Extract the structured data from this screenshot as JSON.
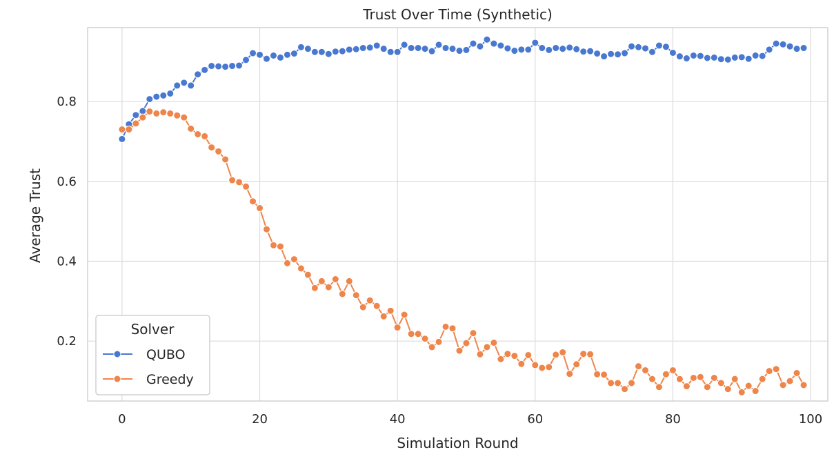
{
  "chart_data": {
    "type": "line",
    "title": "Trust Over Time (Synthetic)",
    "xlabel": "Simulation Round",
    "ylabel": "Average Trust",
    "xlim": [
      -5.0,
      102.5
    ],
    "ylim": [
      0.05,
      0.985
    ],
    "x_ticks": [
      0,
      20,
      40,
      60,
      80,
      100
    ],
    "x_tick_labels": [
      "0",
      "20",
      "40",
      "60",
      "80",
      "100"
    ],
    "y_ticks": [
      0.2,
      0.4,
      0.6,
      0.8
    ],
    "y_tick_labels": [
      "0.2",
      "0.4",
      "0.6",
      "0.8"
    ],
    "grid": true,
    "legend": {
      "title": "Solver",
      "position": "lower-left"
    },
    "x": [
      0,
      1,
      2,
      3,
      4,
      5,
      6,
      7,
      8,
      9,
      10,
      11,
      12,
      13,
      14,
      15,
      16,
      17,
      18,
      19,
      20,
      21,
      22,
      23,
      24,
      25,
      26,
      27,
      28,
      29,
      30,
      31,
      32,
      33,
      34,
      35,
      36,
      37,
      38,
      39,
      40,
      41,
      42,
      43,
      44,
      45,
      46,
      47,
      48,
      49,
      50,
      51,
      52,
      53,
      54,
      55,
      56,
      57,
      58,
      59,
      60,
      61,
      62,
      63,
      64,
      65,
      66,
      67,
      68,
      69,
      70,
      71,
      72,
      73,
      74,
      75,
      76,
      77,
      78,
      79,
      80,
      81,
      82,
      83,
      84,
      85,
      86,
      87,
      88,
      89,
      90,
      91,
      92,
      93,
      94,
      95,
      96,
      97,
      98,
      99
    ],
    "series": [
      {
        "name": "QUBO",
        "color": "#4878d0",
        "values": [
          0.706,
          0.743,
          0.766,
          0.776,
          0.806,
          0.812,
          0.815,
          0.82,
          0.84,
          0.847,
          0.84,
          0.868,
          0.879,
          0.889,
          0.888,
          0.887,
          0.889,
          0.89,
          0.904,
          0.921,
          0.917,
          0.907,
          0.915,
          0.91,
          0.917,
          0.92,
          0.936,
          0.932,
          0.924,
          0.924,
          0.919,
          0.925,
          0.926,
          0.93,
          0.931,
          0.934,
          0.935,
          0.94,
          0.932,
          0.924,
          0.924,
          0.942,
          0.934,
          0.934,
          0.932,
          0.926,
          0.942,
          0.934,
          0.932,
          0.927,
          0.929,
          0.945,
          0.938,
          0.955,
          0.945,
          0.94,
          0.933,
          0.927,
          0.93,
          0.93,
          0.947,
          0.934,
          0.929,
          0.934,
          0.932,
          0.935,
          0.931,
          0.925,
          0.926,
          0.92,
          0.913,
          0.919,
          0.918,
          0.921,
          0.938,
          0.936,
          0.933,
          0.924,
          0.94,
          0.937,
          0.922,
          0.913,
          0.908,
          0.915,
          0.914,
          0.909,
          0.91,
          0.906,
          0.905,
          0.91,
          0.911,
          0.907,
          0.915,
          0.914,
          0.93,
          0.945,
          0.943,
          0.938,
          0.932,
          0.934
        ]
      },
      {
        "name": "Greedy",
        "color": "#ee854a",
        "values": [
          0.73,
          0.73,
          0.745,
          0.76,
          0.775,
          0.77,
          0.773,
          0.77,
          0.765,
          0.76,
          0.732,
          0.718,
          0.713,
          0.685,
          0.675,
          0.655,
          0.603,
          0.598,
          0.587,
          0.55,
          0.533,
          0.48,
          0.44,
          0.437,
          0.395,
          0.405,
          0.382,
          0.366,
          0.333,
          0.35,
          0.335,
          0.355,
          0.318,
          0.35,
          0.315,
          0.285,
          0.302,
          0.288,
          0.262,
          0.276,
          0.234,
          0.266,
          0.218,
          0.218,
          0.206,
          0.185,
          0.198,
          0.236,
          0.232,
          0.176,
          0.195,
          0.22,
          0.167,
          0.185,
          0.196,
          0.155,
          0.168,
          0.163,
          0.143,
          0.165,
          0.14,
          0.133,
          0.135,
          0.166,
          0.172,
          0.118,
          0.142,
          0.168,
          0.167,
          0.117,
          0.116,
          0.095,
          0.095,
          0.08,
          0.095,
          0.137,
          0.127,
          0.105,
          0.085,
          0.117,
          0.127,
          0.105,
          0.087,
          0.108,
          0.11,
          0.085,
          0.108,
          0.095,
          0.08,
          0.105,
          0.072,
          0.088,
          0.075,
          0.105,
          0.125,
          0.13,
          0.09,
          0.1,
          0.12,
          0.09
        ]
      }
    ]
  }
}
